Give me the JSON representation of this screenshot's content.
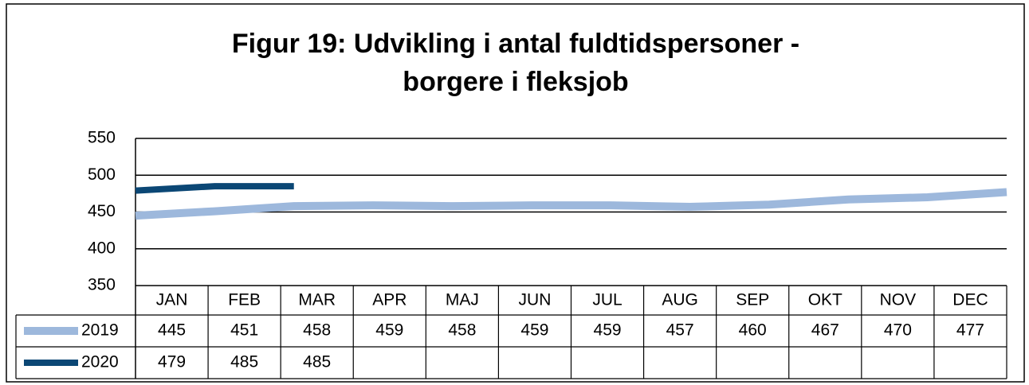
{
  "chart_data": {
    "type": "line",
    "title": [
      "Figur 19: Udvikling i antal fuldtidspersoner -",
      "borgere i fleksjob"
    ],
    "categories": [
      "JAN",
      "FEB",
      "MAR",
      "APR",
      "MAJ",
      "JUN",
      "JUL",
      "AUG",
      "SEP",
      "OKT",
      "NOV",
      "DEC"
    ],
    "series": [
      {
        "name": "2019",
        "color": "#9db8dc",
        "values": [
          445,
          451,
          458,
          459,
          458,
          459,
          459,
          457,
          460,
          467,
          470,
          477
        ]
      },
      {
        "name": "2020",
        "color": "#0b4775",
        "values": [
          479,
          485,
          485,
          null,
          null,
          null,
          null,
          null,
          null,
          null,
          null,
          null
        ]
      }
    ],
    "ylim": [
      350,
      550
    ],
    "yticks": [
      350,
      400,
      450,
      500,
      550
    ],
    "grid": true
  }
}
